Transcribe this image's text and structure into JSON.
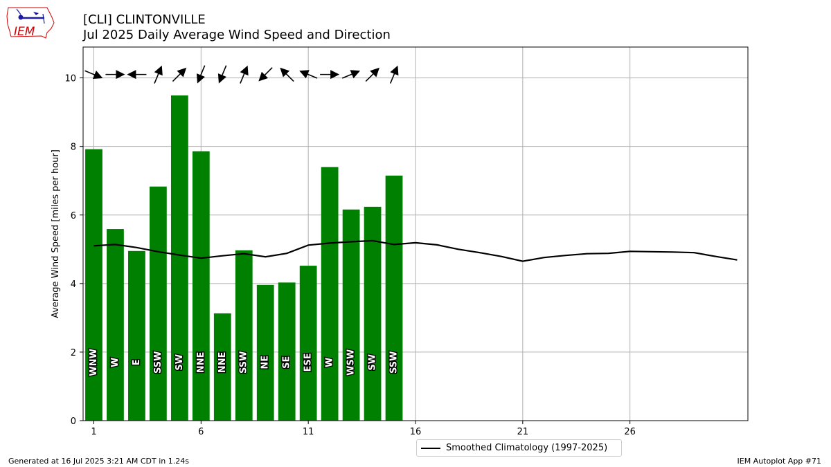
{
  "header": {
    "title_line1": "[CLI] CLINTONVILLE",
    "title_line2": "Jul 2025 Daily Average Wind Speed and Direction"
  },
  "logo": {
    "text": "IEM"
  },
  "footer": {
    "generated": "Generated at 16 Jul 2025 3:21 AM CDT in 1.24s",
    "app": "IEM Autoplot App #71"
  },
  "legend": {
    "label": "Smoothed Climatology (1997-2025)"
  },
  "colors": {
    "bar": "#008000",
    "climo": "#000000",
    "grid": "#b0b0b0",
    "logo_red": "#cc0000",
    "logo_blue": "#1a1aa8"
  },
  "chart_data": {
    "type": "bar",
    "ylabel": "Average Wind Speed [miles per hour]",
    "xlabel": "",
    "xlim": [
      0.5,
      31.5
    ],
    "ylim": [
      0,
      10.9
    ],
    "xticks": [
      1,
      6,
      11,
      16,
      21,
      26
    ],
    "yticks": [
      0,
      2,
      4,
      6,
      8,
      10
    ],
    "grid": true,
    "legend_position": "bottom-center-outside",
    "days": [
      1,
      2,
      3,
      4,
      5,
      6,
      7,
      8,
      9,
      10,
      11,
      12,
      13,
      14,
      15
    ],
    "speeds": [
      7.92,
      5.59,
      4.95,
      6.83,
      9.49,
      7.86,
      3.13,
      4.97,
      3.96,
      4.03,
      4.52,
      7.4,
      6.16,
      6.24,
      7.15
    ],
    "directions": [
      "WNW",
      "W",
      "E",
      "SSW",
      "SW",
      "NNE",
      "NNE",
      "SSW",
      "NE",
      "SE",
      "ESE",
      "W",
      "WSW",
      "SW",
      "SSW"
    ],
    "climatology": {
      "name": "Smoothed Climatology (1997-2025)",
      "x": [
        1,
        2,
        3,
        4,
        5,
        6,
        7,
        8,
        9,
        10,
        11,
        12,
        13,
        14,
        15,
        16,
        17,
        18,
        19,
        20,
        21,
        22,
        23,
        24,
        25,
        26,
        27,
        28,
        29,
        30,
        31
      ],
      "values": [
        5.1,
        5.14,
        5.05,
        4.93,
        4.83,
        4.74,
        4.81,
        4.87,
        4.78,
        4.88,
        5.12,
        5.18,
        5.22,
        5.25,
        5.14,
        5.19,
        5.13,
        5.0,
        4.9,
        4.79,
        4.65,
        4.76,
        4.82,
        4.87,
        4.88,
        4.94,
        4.93,
        4.92,
        4.9,
        4.79,
        4.69
      ]
    }
  }
}
